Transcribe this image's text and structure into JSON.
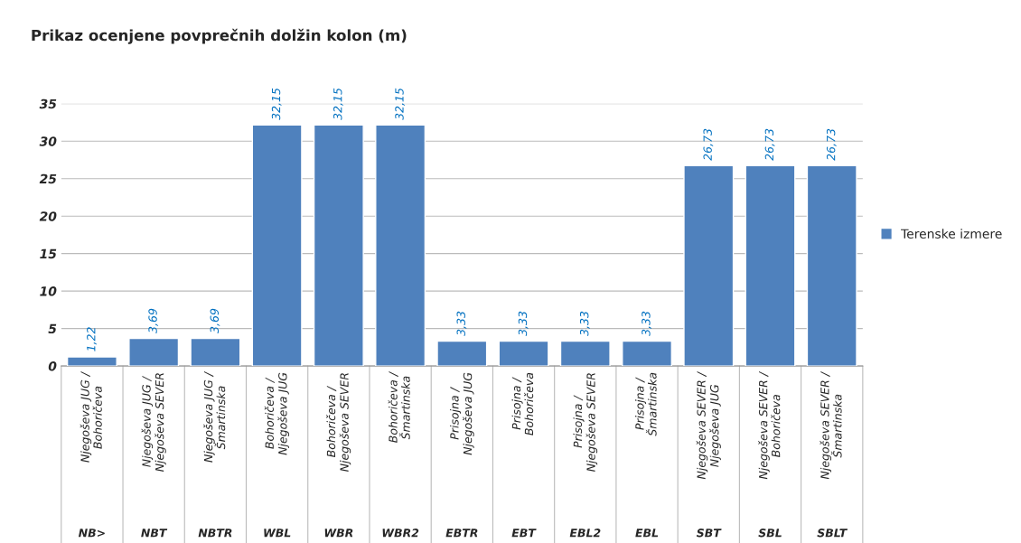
{
  "chart_data": {
    "type": "bar",
    "title": "Prikaz ocenjene povprečnih dolžin kolon (m)",
    "categories": [
      "Njegoševa JUG / Bohoričeva",
      "Njegoševa JUG / Njegoševa SEVER",
      "Njegoševa JUG / Šmartinska",
      "Bohoričeva / Njegoševa JUG",
      "Bohoričeva / Njegoševa SEVER",
      "Bohoričeva / Šmartinska",
      "Prisojna / Njegoševa JUG",
      "Prisojna / Bohoričeva",
      "Prisojna / Njegoševa SEVER",
      "Prisojna / Šmartinska",
      "Njegoševa SEVER / Njegoševa JUG",
      "Njegoševa SEVER / Bohoričeva",
      "Njegoševa SEVER / Šmartinska"
    ],
    "series": [
      {
        "name": "Terenske izmere",
        "color": "#4f81bd",
        "values": [
          1.22,
          3.69,
          3.69,
          32.15,
          32.15,
          32.15,
          3.33,
          3.33,
          3.33,
          3.33,
          26.73,
          26.73,
          26.73
        ],
        "value_labels": [
          "1,22",
          "3,69",
          "3,69",
          "32,15",
          "32,15",
          "32,15",
          "3,33",
          "3,33",
          "3,33",
          "3,33",
          "26,73",
          "26,73",
          "26,73"
        ]
      }
    ],
    "annotations": [
      "NB>",
      "NBT",
      "NBTR",
      "WBL",
      "WBR",
      "WBR2",
      "EBTR",
      "EBT",
      "EBL2",
      "EBL",
      "SBT",
      "SBL",
      "SBLT"
    ],
    "ylim": [
      0,
      35
    ],
    "yticks": [
      0,
      5,
      10,
      15,
      20,
      25,
      30,
      35
    ],
    "grid": "y",
    "legend": "right"
  }
}
